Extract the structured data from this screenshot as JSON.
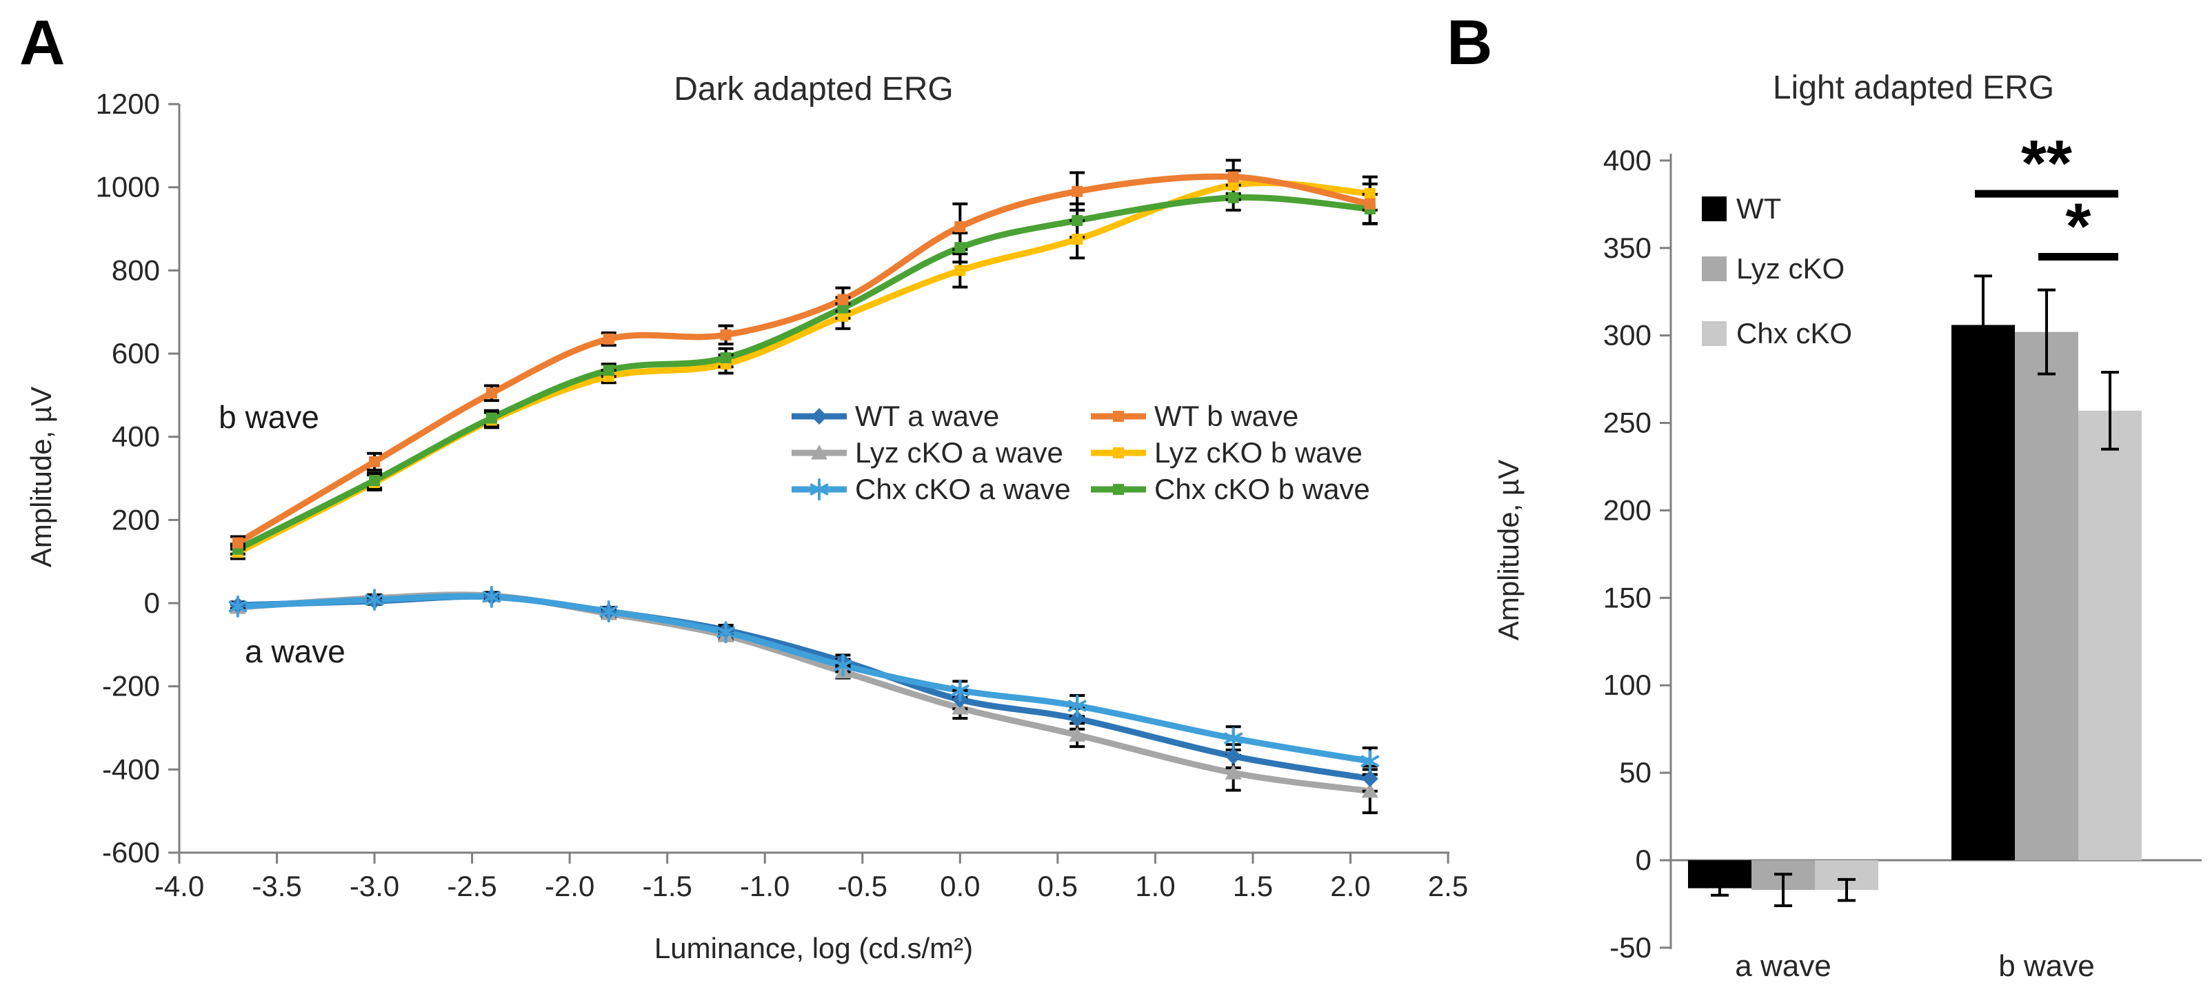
{
  "figure": {
    "panel_a_label": "A",
    "panel_b_label": "B",
    "background": "#FFFFFF",
    "axis_color": "#7F7F7F",
    "text_color": "#262626",
    "error_bar_color": "#000000"
  },
  "chart_data": [
    {
      "id": "dark_adapted_erg",
      "type": "line",
      "title": "Dark adapted ERG",
      "xlabel": "Luminance, log (cd.s/m²)",
      "ylabel": "Amplitude, µV",
      "xlim": [
        -4.0,
        2.5
      ],
      "ylim": [
        -600,
        1200
      ],
      "grid": false,
      "x_tick_labels": [
        "-4.0",
        "-3.5",
        "-3.0",
        "-2.5",
        "-2.0",
        "-1.5",
        "-1.0",
        "-0.5",
        "0.0",
        "0.5",
        "1.0",
        "1.5",
        "2.0",
        "2.5"
      ],
      "y_ticks": [
        1200,
        1000,
        800,
        600,
        400,
        200,
        0,
        -200,
        -400,
        -600
      ],
      "x": [
        -3.7,
        -3.0,
        -2.4,
        -1.8,
        -1.2,
        -0.6,
        0.0,
        0.6,
        1.4,
        2.1
      ],
      "series": [
        {
          "name": "Lyz cKO a wave",
          "color": "#A6A6A6",
          "marker": "triangle",
          "values": [
            -10,
            12,
            18,
            -25,
            -78,
            -165,
            -252,
            -317,
            -408,
            -452
          ],
          "err": [
            8,
            8,
            8,
            10,
            12,
            15,
            25,
            28,
            42,
            52
          ]
        },
        {
          "name": "WT a wave",
          "color": "#2E75B6",
          "marker": "diamond",
          "values": [
            -5,
            5,
            15,
            -20,
            -65,
            -140,
            -232,
            -278,
            -368,
            -422
          ],
          "err": [
            8,
            8,
            8,
            10,
            12,
            15,
            22,
            25,
            28,
            30
          ]
        },
        {
          "name": "Chx cKO a wave",
          "color": "#3FA0DA",
          "marker": "asterisk",
          "values": [
            -8,
            8,
            15,
            -20,
            -70,
            -150,
            -210,
            -247,
            -325,
            -380
          ],
          "err": [
            8,
            8,
            8,
            10,
            12,
            15,
            22,
            25,
            28,
            32
          ]
        },
        {
          "name": "Lyz cKO b wave",
          "color": "#FFC000",
          "marker": "square",
          "values": [
            122,
            290,
            440,
            545,
            575,
            690,
            800,
            875,
            1005,
            985
          ],
          "err": [
            15,
            18,
            18,
            15,
            22,
            30,
            40,
            45,
            35,
            40
          ]
        },
        {
          "name": "Chx cKO b wave",
          "color": "#4AA234",
          "marker": "square",
          "values": [
            130,
            295,
            445,
            560,
            590,
            710,
            855,
            920,
            975,
            948
          ],
          "err": [
            12,
            18,
            18,
            15,
            22,
            25,
            35,
            40,
            30,
            35
          ]
        },
        {
          "name": "WT b wave",
          "color": "#ED7D31",
          "marker": "square",
          "values": [
            145,
            340,
            505,
            635,
            645,
            730,
            905,
            990,
            1025,
            960
          ],
          "err": [
            15,
            20,
            18,
            15,
            22,
            28,
            55,
            45,
            40,
            48
          ]
        }
      ],
      "legend_columns": [
        [
          "WT a wave",
          "Lyz cKO a wave",
          "Chx cKO a wave"
        ],
        [
          "WT b wave",
          "Lyz cKO b wave",
          "Chx cKO b wave"
        ]
      ],
      "annotations": [
        {
          "text": "b wave"
        },
        {
          "text": "a wave"
        }
      ]
    },
    {
      "id": "light_adapted_erg",
      "type": "bar",
      "title": "Light adapted ERG",
      "ylabel": "Amplitude, µV",
      "ylim": [
        -50,
        400
      ],
      "grid": false,
      "y_ticks": [
        400,
        350,
        300,
        250,
        200,
        150,
        100,
        50,
        0,
        -50
      ],
      "categories": [
        "a wave",
        "b wave"
      ],
      "series": [
        {
          "name": "WT",
          "color": "#000000",
          "values": [
            -16,
            306
          ],
          "err": [
            4,
            28
          ]
        },
        {
          "name": "Lyz cKO",
          "color": "#A9A9A9",
          "values": [
            -17,
            302
          ],
          "err": [
            9,
            24
          ]
        },
        {
          "name": "Chx cKO",
          "color": "#C9C9C9",
          "values": [
            -17,
            257
          ],
          "err": [
            6,
            22
          ]
        }
      ],
      "significance": [
        {
          "label": "**",
          "from": "WT",
          "to": "Chx cKO",
          "category": "b wave",
          "line_y": 381
        },
        {
          "label": "*",
          "from": "Lyz cKO",
          "to": "Chx cKO",
          "category": "b wave",
          "line_y": 345
        }
      ]
    }
  ]
}
